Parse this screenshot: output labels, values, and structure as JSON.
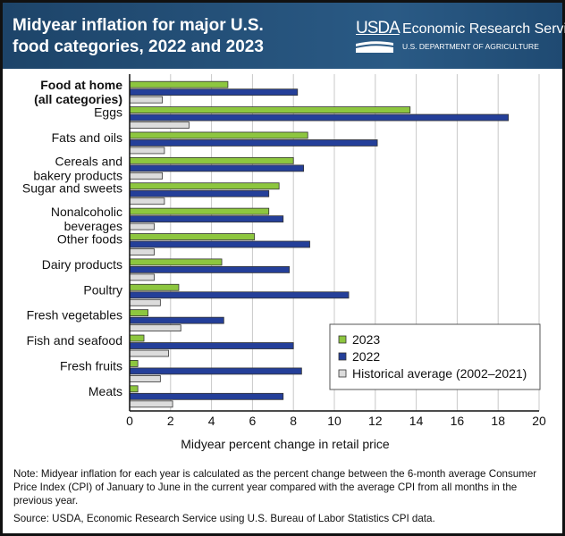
{
  "header": {
    "title": "Midyear inflation for major U.S. food categories, 2022 and 2023",
    "logo_text": "USDA",
    "agency": "Economic Research Service",
    "department": "U.S. DEPARTMENT OF AGRICULTURE"
  },
  "chart_data": {
    "type": "bar",
    "orientation": "horizontal",
    "title": "Midyear inflation for major U.S. food categories, 2022 and 2023",
    "xlabel": "Midyear percent change in retail price",
    "xlim": [
      0,
      20
    ],
    "xticks": [
      "0",
      "2",
      "4",
      "6",
      "8",
      "10",
      "12",
      "14",
      "16",
      "18",
      "20"
    ],
    "grid": true,
    "legend": "bottom-right",
    "categories": [
      "Food at home (all categories)",
      "Eggs",
      "Fats and oils",
      "Cereals and bakery products",
      "Sugar and sweets",
      "Nonalcoholic beverages",
      "Other foods",
      "Dairy products",
      "Poultry",
      "Fresh vegetables",
      "Fish and seafood",
      "Fresh fruits",
      "Meats"
    ],
    "category_lines": [
      [
        "Food at home",
        "(all categories)"
      ],
      [
        "Eggs"
      ],
      [
        "Fats and oils"
      ],
      [
        "Cereals and",
        "bakery products"
      ],
      [
        "Sugar and sweets"
      ],
      [
        "Nonalcoholic",
        "beverages"
      ],
      [
        "Other foods"
      ],
      [
        "Dairy products"
      ],
      [
        "Poultry"
      ],
      [
        "Fresh vegetables"
      ],
      [
        "Fish and seafood"
      ],
      [
        "Fresh fruits"
      ],
      [
        "Meats"
      ]
    ],
    "series": [
      {
        "name": "2023",
        "color": "#8dc63f",
        "values": [
          4.8,
          13.7,
          8.7,
          8.0,
          7.3,
          6.8,
          6.1,
          4.5,
          2.4,
          0.9,
          0.7,
          0.4,
          0.4
        ]
      },
      {
        "name": "2022",
        "color": "#243f99",
        "values": [
          8.2,
          18.5,
          12.1,
          8.5,
          6.8,
          7.5,
          8.8,
          7.8,
          10.7,
          4.6,
          8.0,
          8.4,
          7.5
        ]
      },
      {
        "name": "Historical average (2002–2021)",
        "color": "#dcdcdc",
        "values": [
          1.6,
          2.9,
          1.7,
          1.6,
          1.7,
          1.2,
          1.2,
          1.2,
          1.5,
          2.5,
          1.9,
          1.5,
          2.1
        ]
      }
    ]
  },
  "footer": {
    "note": "Note: Midyear inflation for each year is calculated as the percent change between the 6-month average Consumer Price Index (CPI) of January to June in the current year compared with the average CPI from all months in the previous year.",
    "source": "Source: USDA, Economic Research Service using U.S. Bureau of Labor Statistics CPI data."
  }
}
